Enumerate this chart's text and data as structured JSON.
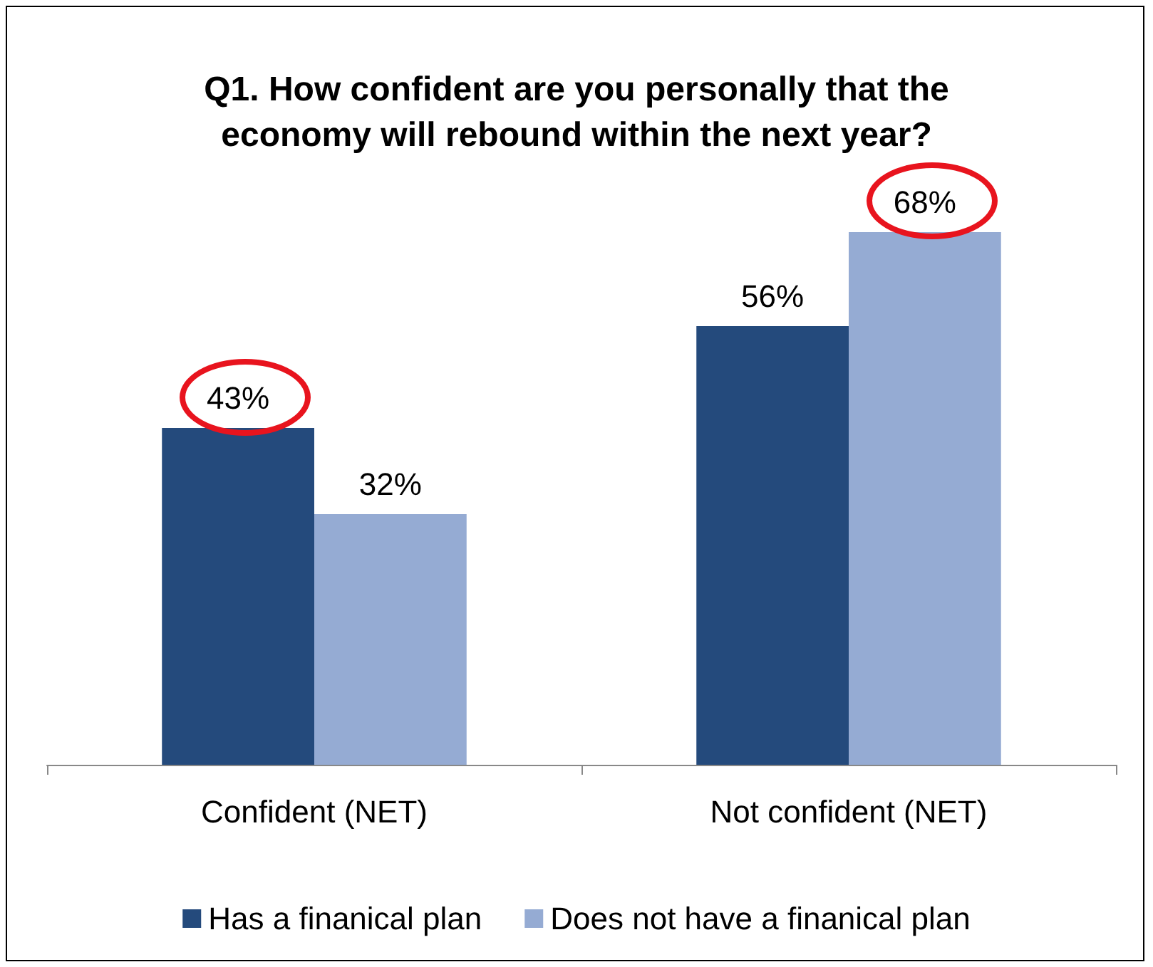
{
  "chart_data": {
    "type": "bar",
    "title": "Q1. How confident are you personally that the\neconomy will rebound within the next year?",
    "categories": [
      "Confident (NET)",
      "Not confident (NET)"
    ],
    "series": [
      {
        "name": "Has a finanical plan",
        "color": "#244a7c",
        "values": [
          43,
          56
        ],
        "value_labels": [
          "43%",
          "56%"
        ]
      },
      {
        "name": "Does not have a finanical plan",
        "color": "#95abd3",
        "values": [
          32,
          68
        ],
        "value_labels": [
          "32%",
          "68%"
        ]
      }
    ],
    "legend": "bottom"
  }
}
